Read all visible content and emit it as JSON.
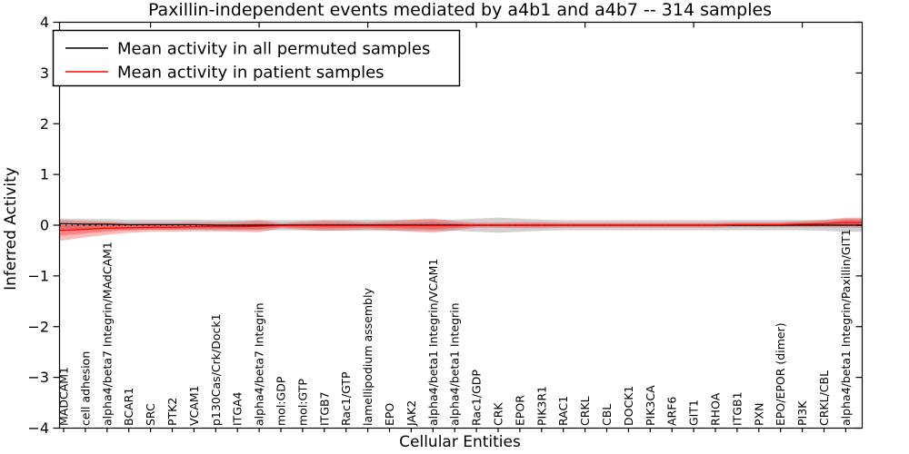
{
  "figure": {
    "title": "Paxillin-independent events mediated by a4b1 and a4b7 -- 314 samples",
    "xlabel": "Cellular Entities",
    "ylabel": "Inferred Activity"
  },
  "legend": {
    "items": [
      {
        "label": "Mean activity in all permuted samples",
        "color": "#000000"
      },
      {
        "label": "Mean activity in patient samples",
        "color": "#ff0000"
      }
    ],
    "position": "upper left"
  },
  "chart_data": {
    "type": "line",
    "title": "Paxillin-independent events mediated by a4b1 and a4b7 -- 314 samples",
    "xlabel": "Cellular Entities",
    "ylabel": "Inferred Activity",
    "ylim": [
      -4,
      4
    ],
    "yticks": [
      4,
      3,
      2,
      1,
      0,
      -1,
      -2,
      -3,
      -4
    ],
    "yticklabels": [
      "4",
      "3",
      "2",
      "1",
      "0",
      "−1",
      "−2",
      "−3",
      "−4"
    ],
    "grid": false,
    "zero_reference_line": true,
    "xticklabel_rotation": 90,
    "legend_position": "upper left",
    "categories": [
      "MADCAM1",
      "cell adhesion",
      "alpha4/beta7 Integrin/MAdCAM1",
      "BCAR1",
      "SRC",
      "PTK2",
      "VCAM1",
      "p130Cas/Crk/Dock1",
      "ITGA4",
      "alpha4/beta7 Integrin",
      "mol:GDP",
      "mol:GTP",
      "ITGB7",
      "Rac1/GTP",
      "lamellipodium assembly",
      "EPO",
      "JAK2",
      "alpha4/beta1 Integrin/VCAM1",
      "alpha4/beta1 Integrin",
      "Rac1/GDP",
      "CRK",
      "EPOR",
      "PIK3R1",
      "RAC1",
      "CRKL",
      "CBL",
      "DOCK1",
      "PIK3CA",
      "ARF6",
      "GIT1",
      "RHOA",
      "ITGB1",
      "PXN",
      "EPO/EPOR (dimer)",
      "PI3K",
      "CRKL/CBL",
      "alpha4/beta1 Integrin/Paxillin/GIT1"
    ],
    "series": [
      {
        "name": "Mean activity in all permuted samples",
        "color": "#000000",
        "band_color": "rgba(135,135,135,0.38)",
        "values": [
          0.03,
          0.02,
          0.02,
          0.01,
          0.01,
          0.01,
          0.01,
          0.0,
          0.0,
          0.0,
          0.0,
          0.0,
          0.0,
          0.0,
          0.0,
          0.0,
          0.0,
          0.0,
          0.0,
          0.0,
          0.0,
          0.0,
          0.0,
          0.0,
          0.0,
          0.0,
          0.0,
          0.0,
          0.0,
          0.0,
          0.0,
          0.0,
          0.0,
          0.0,
          0.0,
          0.0,
          0.0
        ],
        "std": [
          0.1,
          0.1,
          0.1,
          0.1,
          0.1,
          0.1,
          0.1,
          0.1,
          0.1,
          0.1,
          0.1,
          0.1,
          0.11,
          0.11,
          0.11,
          0.11,
          0.11,
          0.11,
          0.11,
          0.13,
          0.15,
          0.13,
          0.11,
          0.1,
          0.1,
          0.1,
          0.1,
          0.1,
          0.1,
          0.1,
          0.1,
          0.1,
          0.1,
          0.1,
          0.1,
          0.11,
          0.13
        ]
      },
      {
        "name": "Mean activity in patient samples",
        "color": "#ff0000",
        "band_color": "rgba(255,0,0,0.27)",
        "values": [
          -0.1,
          -0.08,
          -0.06,
          -0.05,
          -0.04,
          -0.04,
          -0.03,
          -0.03,
          -0.03,
          -0.02,
          -0.01,
          -0.01,
          -0.01,
          -0.01,
          -0.01,
          -0.01,
          -0.01,
          -0.01,
          -0.01,
          0.0,
          0.0,
          0.0,
          0.0,
          0.0,
          0.0,
          0.0,
          0.0,
          0.0,
          0.0,
          0.0,
          0.0,
          0.01,
          0.01,
          0.01,
          0.02,
          0.03,
          0.05
        ],
        "std": [
          0.2,
          0.16,
          0.13,
          0.1,
          0.09,
          0.09,
          0.09,
          0.09,
          0.1,
          0.12,
          0.05,
          0.08,
          0.1,
          0.09,
          0.07,
          0.09,
          0.12,
          0.14,
          0.09,
          0.05,
          0.05,
          0.06,
          0.06,
          0.05,
          0.05,
          0.05,
          0.05,
          0.05,
          0.05,
          0.05,
          0.05,
          0.05,
          0.05,
          0.05,
          0.06,
          0.07,
          0.1
        ]
      }
    ]
  }
}
